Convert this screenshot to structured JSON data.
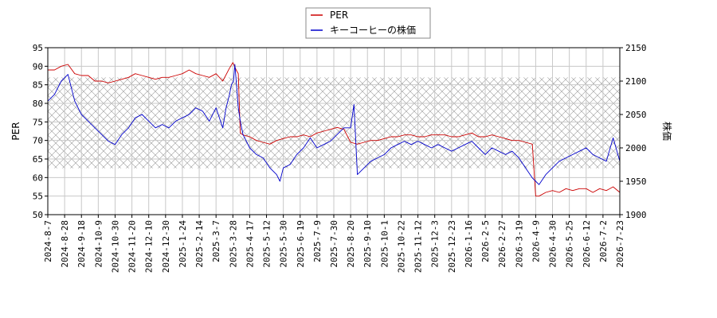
{
  "chart_data": {
    "type": "line",
    "x_ticks": [
      "2024-8-7",
      "2024-8-28",
      "2024-9-18",
      "2024-10-9",
      "2024-10-30",
      "2024-11-20",
      "2024-12-10",
      "2024-12-30",
      "2025-1-24",
      "2025-2-14",
      "2025-3-7",
      "2025-3-28",
      "2025-4-17",
      "2025-5-12",
      "2025-5-30",
      "2025-6-19",
      "2025-7-9",
      "2025-7-30",
      "2025-8-20",
      "2025-9-10",
      "2025-10-1",
      "2025-10-22",
      "2025-11-12",
      "2025-12-3",
      "2025-12-23",
      "2026-1-16",
      "2026-2-5",
      "2026-2-27",
      "2026-3-19",
      "2026-4-9",
      "2026-4-30",
      "2026-5-25",
      "2026-6-12",
      "2026-7-2",
      "2026-7-23"
    ],
    "left_axis": {
      "label": "PER",
      "ylim": [
        50,
        95
      ],
      "ticks": [
        50,
        55,
        60,
        65,
        70,
        75,
        80,
        85,
        90,
        95
      ]
    },
    "right_axis": {
      "label": "株価",
      "ylim": [
        1900,
        2150
      ],
      "ticks": [
        1900,
        1950,
        2000,
        2050,
        2100,
        2150
      ]
    },
    "per_range_band": [
      62.5,
      87
    ],
    "grid": true,
    "legend_position": "top-center",
    "series": [
      {
        "name": "PER",
        "axis": "left",
        "color": "#cc0000",
        "points": [
          [
            0,
            89
          ],
          [
            1,
            89
          ],
          [
            2,
            90
          ],
          [
            3,
            90.5
          ],
          [
            4,
            88
          ],
          [
            5,
            87.5
          ],
          [
            6,
            87.5
          ],
          [
            7,
            86
          ],
          [
            8,
            86
          ],
          [
            9,
            85.5
          ],
          [
            10,
            86
          ],
          [
            11,
            86.5
          ],
          [
            12,
            87
          ],
          [
            13,
            88
          ],
          [
            14,
            87.5
          ],
          [
            15,
            87
          ],
          [
            16,
            86.5
          ],
          [
            17,
            87
          ],
          [
            18,
            87
          ],
          [
            19,
            87.5
          ],
          [
            20,
            88
          ],
          [
            21,
            89
          ],
          [
            22,
            88
          ],
          [
            23,
            87.5
          ],
          [
            24,
            87
          ],
          [
            25,
            88
          ],
          [
            26,
            86
          ],
          [
            27,
            89.5
          ],
          [
            27.5,
            91
          ],
          [
            28,
            89
          ],
          [
            28.3,
            88
          ],
          [
            28.6,
            72
          ],
          [
            29,
            71.5
          ],
          [
            30,
            71
          ],
          [
            31,
            70
          ],
          [
            32,
            69.5
          ],
          [
            33,
            69
          ],
          [
            34,
            70
          ],
          [
            35,
            70.5
          ],
          [
            36,
            71
          ],
          [
            37,
            71
          ],
          [
            38,
            71.5
          ],
          [
            39,
            71
          ],
          [
            40,
            72
          ],
          [
            41,
            72.5
          ],
          [
            42,
            73
          ],
          [
            43,
            73.5
          ],
          [
            44,
            73
          ],
          [
            45,
            69.5
          ],
          [
            46,
            69
          ],
          [
            47,
            69.5
          ],
          [
            48,
            70
          ],
          [
            49,
            70
          ],
          [
            50,
            70.5
          ],
          [
            51,
            71
          ],
          [
            52,
            71
          ],
          [
            53,
            71.5
          ],
          [
            54,
            71.5
          ],
          [
            55,
            71
          ],
          [
            56,
            71
          ],
          [
            57,
            71.5
          ],
          [
            58,
            71.5
          ],
          [
            59,
            71.5
          ],
          [
            60,
            71
          ],
          [
            61,
            71
          ],
          [
            62,
            71.5
          ],
          [
            63,
            72
          ],
          [
            64,
            71
          ],
          [
            65,
            71
          ],
          [
            66,
            71.5
          ],
          [
            67,
            71
          ],
          [
            68,
            70.5
          ],
          [
            69,
            70
          ],
          [
            70,
            70
          ],
          [
            71,
            69.5
          ],
          [
            72,
            69
          ],
          [
            72.5,
            55
          ],
          [
            73,
            55
          ],
          [
            74,
            56
          ],
          [
            75,
            56.5
          ],
          [
            76,
            56
          ],
          [
            77,
            57
          ],
          [
            78,
            56.5
          ],
          [
            79,
            57
          ],
          [
            80,
            57
          ],
          [
            81,
            56
          ],
          [
            82,
            57
          ],
          [
            83,
            56.5
          ],
          [
            84,
            57.5
          ],
          [
            85,
            56
          ]
        ]
      },
      {
        "name": "キーコーヒーの株価",
        "axis": "right",
        "color": "#0000cc",
        "points": [
          [
            0,
            2070
          ],
          [
            1,
            2080
          ],
          [
            2,
            2100
          ],
          [
            3,
            2110
          ],
          [
            4,
            2070
          ],
          [
            5,
            2050
          ],
          [
            6,
            2040
          ],
          [
            7,
            2030
          ],
          [
            8,
            2020
          ],
          [
            9,
            2010
          ],
          [
            10,
            2005
          ],
          [
            11,
            2020
          ],
          [
            12,
            2030
          ],
          [
            13,
            2045
          ],
          [
            14,
            2050
          ],
          [
            15,
            2040
          ],
          [
            16,
            2030
          ],
          [
            17,
            2035
          ],
          [
            18,
            2030
          ],
          [
            19,
            2040
          ],
          [
            20,
            2045
          ],
          [
            21,
            2050
          ],
          [
            22,
            2060
          ],
          [
            23,
            2055
          ],
          [
            24,
            2040
          ],
          [
            25,
            2060
          ],
          [
            26,
            2030
          ],
          [
            26.5,
            2060
          ],
          [
            27,
            2080
          ],
          [
            27.3,
            2095
          ],
          [
            27.6,
            2100
          ],
          [
            27.8,
            2125
          ],
          [
            28,
            2100
          ],
          [
            28.3,
            2060
          ],
          [
            28.6,
            2040
          ],
          [
            29,
            2020
          ],
          [
            30,
            2000
          ],
          [
            31,
            1990
          ],
          [
            32,
            1985
          ],
          [
            33,
            1970
          ],
          [
            34,
            1960
          ],
          [
            34.5,
            1950
          ],
          [
            35,
            1970
          ],
          [
            36,
            1975
          ],
          [
            37,
            1990
          ],
          [
            38,
            2000
          ],
          [
            39,
            2015
          ],
          [
            40,
            2000
          ],
          [
            41,
            2005
          ],
          [
            42,
            2010
          ],
          [
            43,
            2020
          ],
          [
            44,
            2030
          ],
          [
            45,
            2030
          ],
          [
            45.5,
            2065
          ],
          [
            46,
            1960
          ],
          [
            47,
            1970
          ],
          [
            48,
            1980
          ],
          [
            49,
            1985
          ],
          [
            50,
            1990
          ],
          [
            51,
            2000
          ],
          [
            52,
            2005
          ],
          [
            53,
            2010
          ],
          [
            54,
            2005
          ],
          [
            55,
            2010
          ],
          [
            56,
            2005
          ],
          [
            57,
            2000
          ],
          [
            58,
            2005
          ],
          [
            59,
            2000
          ],
          [
            60,
            1995
          ],
          [
            61,
            2000
          ],
          [
            62,
            2005
          ],
          [
            63,
            2010
          ],
          [
            64,
            2000
          ],
          [
            65,
            1990
          ],
          [
            66,
            2000
          ],
          [
            67,
            1995
          ],
          [
            68,
            1990
          ],
          [
            69,
            1995
          ],
          [
            70,
            1985
          ],
          [
            71,
            1970
          ],
          [
            72,
            1955
          ],
          [
            72.5,
            1950
          ],
          [
            73,
            1945
          ],
          [
            74,
            1960
          ],
          [
            75,
            1970
          ],
          [
            76,
            1980
          ],
          [
            77,
            1985
          ],
          [
            78,
            1990
          ],
          [
            79,
            1995
          ],
          [
            80,
            2000
          ],
          [
            81,
            1990
          ],
          [
            82,
            1985
          ],
          [
            83,
            1980
          ],
          [
            84,
            2015
          ],
          [
            85,
            1980
          ]
        ]
      }
    ]
  }
}
